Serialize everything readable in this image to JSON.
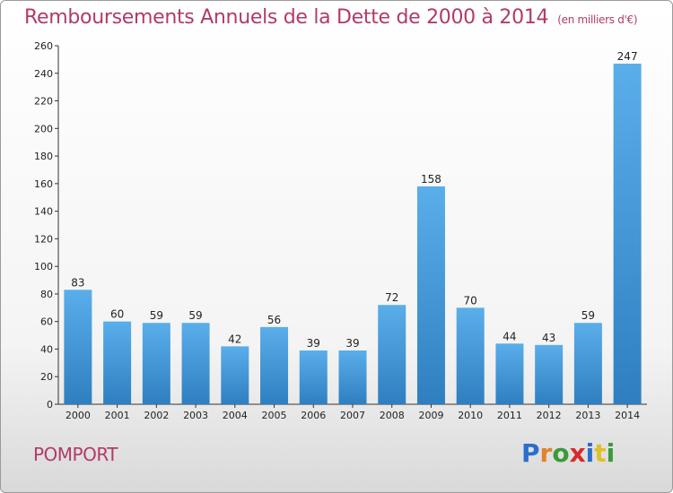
{
  "header": {
    "title": "Remboursements Annuels de la Dette de 2000 à 2014",
    "subtitle": "(en milliers d'€)"
  },
  "commune": "POMPORT",
  "logo": {
    "letters": [
      "P",
      "r",
      "o",
      "x",
      "i",
      "t",
      "i"
    ],
    "colors": [
      "#2a6fc9",
      "#e0832a",
      "#3a9a3a",
      "#d62b2b",
      "#2a6fc9",
      "#e0c02a",
      "#3a9a3a"
    ]
  },
  "chart_data": {
    "type": "bar",
    "title": "Remboursements Annuels de la Dette de 2000 à 2014",
    "categories": [
      "2000",
      "2001",
      "2002",
      "2003",
      "2004",
      "2005",
      "2006",
      "2007",
      "2008",
      "2009",
      "2010",
      "2011",
      "2012",
      "2013",
      "2014"
    ],
    "values": [
      83,
      60,
      59,
      59,
      42,
      56,
      39,
      39,
      72,
      158,
      70,
      44,
      43,
      59,
      247
    ],
    "ylim": [
      0,
      260
    ],
    "yticks": [
      0,
      20,
      40,
      60,
      80,
      100,
      120,
      140,
      160,
      180,
      200,
      220,
      240,
      260
    ],
    "grid": false,
    "bar_color": "#4a9ee0"
  }
}
